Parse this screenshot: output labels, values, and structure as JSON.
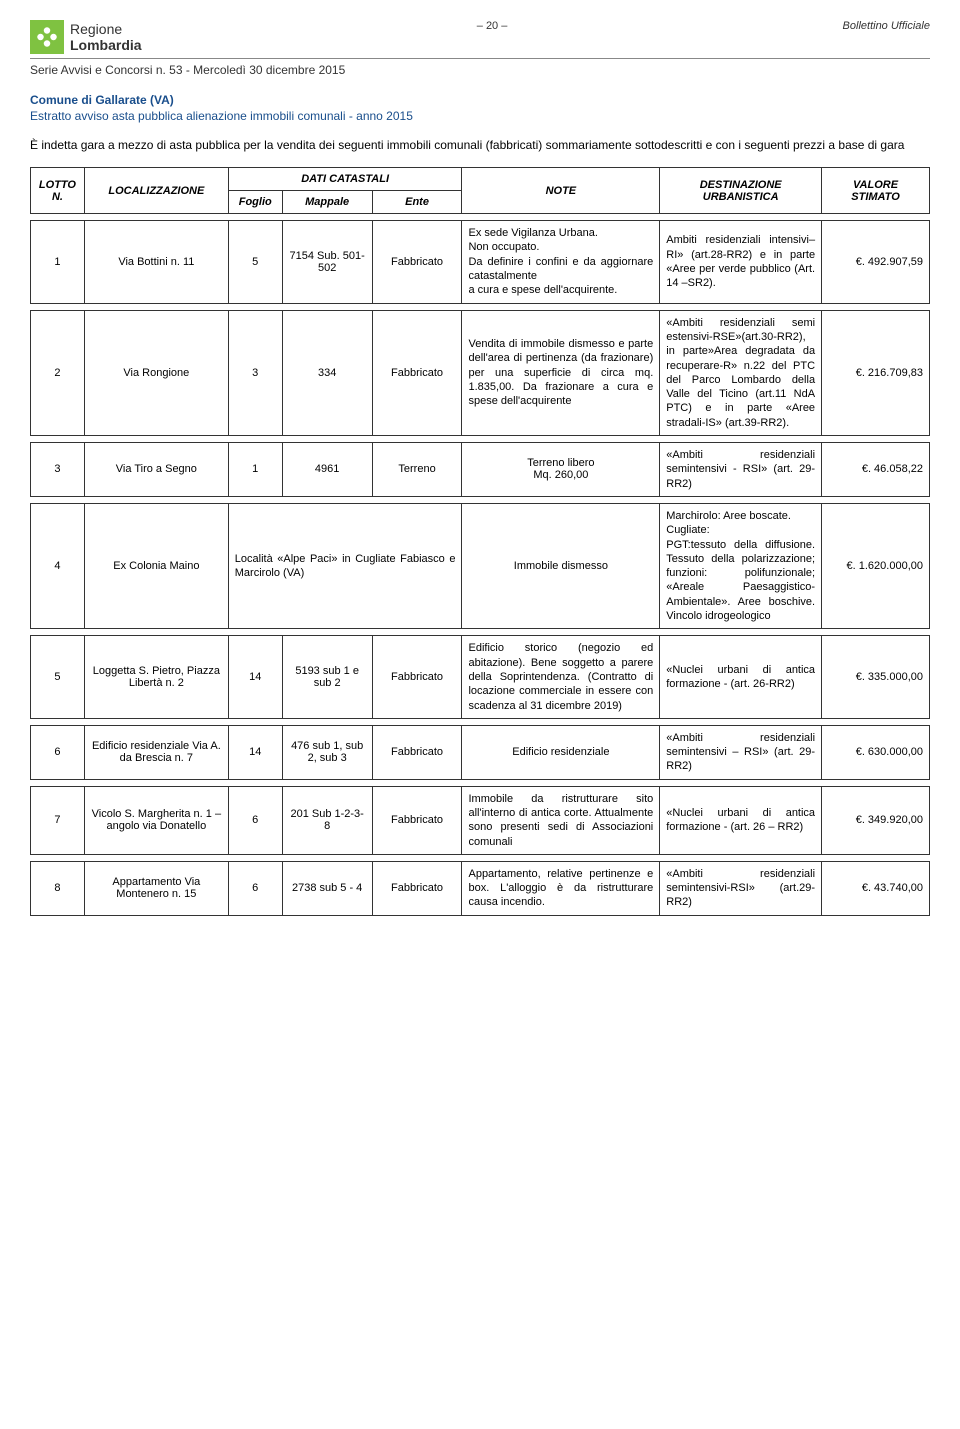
{
  "header": {
    "logo_line1": "Regione",
    "logo_line2": "Lombardia",
    "page_number": "– 20 –",
    "bollettino": "Bollettino Ufficiale",
    "serie": "Serie Avvisi e Concorsi n. 53 - Mercoledì 30 dicembre 2015"
  },
  "title": {
    "comune": "Comune di Gallarate (VA)",
    "subtitle": "Estratto avviso asta pubblica alienazione immobili comunali - anno 2015"
  },
  "intro": "È indetta gara a mezzo di asta pubblica per la vendita dei seguenti immobili comunali (fabbricati) sommariamente sottodescritti e con i seguenti prezzi a base di gara",
  "table": {
    "headers": {
      "lotto": "LOTTO N.",
      "localizzazione": "LOCALIZZAZIONE",
      "dati_catastali": "DATI CATASTALI",
      "foglio": "Foglio",
      "mappale": "Mappale",
      "ente": "Ente",
      "note": "NOTE",
      "destinazione": "DESTINAZIONE URBANISTICA",
      "valore": "VALORE STIMATO"
    },
    "rows": [
      {
        "lotto": "1",
        "loc": "Via Bottini n. 11",
        "foglio": "5",
        "mappale": "7154 Sub. 501-502",
        "ente": "Fabbricato",
        "note": "Ex sede Vigilanza Urbana.\nNon occupato.\nDa definire i confini e da aggiornare catastalmente\na cura e spese dell'acquirente.",
        "dest": "Ambiti residenziali intensivi–RI» (art.28-RR2) e in parte «Aree per verde pubblico (Art. 14 –SR2).",
        "valore": "€. 492.907,59"
      },
      {
        "lotto": "2",
        "loc": "Via Rongione",
        "foglio": "3",
        "mappale": "334",
        "ente": "Fabbricato",
        "note": "Vendita di immobile dismesso e parte dell'area di pertinenza (da frazionare) per una superficie di circa mq. 1.835,00. Da frazionare a cura e spese dell'acquirente",
        "dest": "«Ambiti residenziali semi estensivi-RSE»(art.30-RR2), in parte»Area degradata da recuperare-R» n.22 del PTC del Parco Lombardo della Valle del Ticino (art.11 NdA PTC) e in parte «Aree stradali-IS» (art.39-RR2).",
        "valore": "€. 216.709,83"
      },
      {
        "lotto": "3",
        "loc": "Via Tiro a Segno",
        "foglio": "1",
        "mappale": "4961",
        "ente": "Terreno",
        "note": "Terreno libero\nMq. 260,00",
        "dest": "«Ambiti residenziali semintensivi - RSI» (art. 29-RR2)",
        "valore": "€. 46.058,22"
      },
      {
        "lotto": "4",
        "loc": "Ex Colonia Maino",
        "merged_catastal": "Località «Alpe Paci» in Cugliate Fabiasco e Marcirolo (VA)",
        "note": "Immobile dismesso",
        "dest": "Marchirolo: Aree boscate.\nCugliate:\nPGT:tessuto della diffusione. Tessuto della polarizzazione; funzioni: polifunzionale; «Areale Paesaggistico-Ambientale». Aree boschive. Vincolo idrogeologico",
        "valore": "€. 1.620.000,00"
      },
      {
        "lotto": "5",
        "loc": "Loggetta S. Pietro, Piazza Libertà n. 2",
        "foglio": "14",
        "mappale": "5193 sub 1 e sub 2",
        "ente": "Fabbricato",
        "note": "Edificio storico (negozio ed abitazione). Bene soggetto a parere della Soprintendenza. (Contratto di locazione commerciale in essere con scadenza al 31 dicembre 2019)",
        "dest": "«Nuclei urbani di antica formazione - (art. 26-RR2)",
        "valore": "€. 335.000,00"
      },
      {
        "lotto": "6",
        "loc": "Edificio residenziale Via A. da Brescia n. 7",
        "foglio": "14",
        "mappale": "476 sub 1, sub 2, sub 3",
        "ente": "Fabbricato",
        "note": "Edificio residenziale",
        "dest": "«Ambiti residenziali semintensivi – RSI» (art. 29-RR2)",
        "valore": "€. 630.000,00"
      },
      {
        "lotto": "7",
        "loc": "Vicolo S. Margherita n. 1 – angolo via Donatello",
        "foglio": "6",
        "mappale": "201 Sub 1-2-3-8",
        "ente": "Fabbricato",
        "note": "Immobile da ristrutturare sito all'interno di antica corte. Attualmente sono presenti sedi di Associazioni comunali",
        "dest": "«Nuclei urbani di antica formazione - (art. 26 – RR2)",
        "valore": "€. 349.920,00"
      },
      {
        "lotto": "8",
        "loc": "Appartamento Via Montenero n. 15",
        "foglio": "6",
        "mappale": "2738 sub 5 - 4",
        "ente": "Fabbricato",
        "note": "Appartamento, relative pertinenze e box. L'alloggio è da ristrutturare causa incendio.",
        "dest": "«Ambiti residenziali semintensivi-RSI» (art.29-RR2)",
        "valore": "€. 43.740,00"
      }
    ]
  }
}
